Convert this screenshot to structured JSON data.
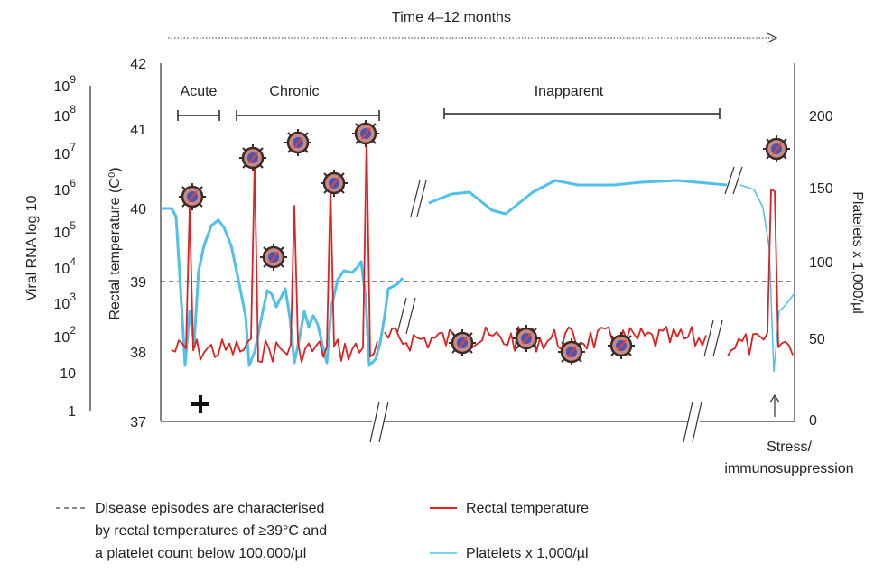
{
  "header": {
    "title": "Time 4–12 months"
  },
  "left_axis": {
    "title": "Viral RNA log 10",
    "labels": [
      {
        "base": "10",
        "exp": "9"
      },
      {
        "base": "10",
        "exp": "8"
      },
      {
        "base": "10",
        "exp": "7"
      },
      {
        "base": "10",
        "exp": "6"
      },
      {
        "base": "10",
        "exp": "5"
      },
      {
        "base": "10",
        "exp": "4"
      },
      {
        "base": "10",
        "exp": "3"
      },
      {
        "base": "10",
        "exp": "2"
      },
      {
        "base": "10",
        "exp": ""
      },
      {
        "base": "1",
        "exp": ""
      }
    ]
  },
  "temp_axis": {
    "title": "Rectal temperature (C⁰)",
    "ticks": [
      42,
      41,
      40,
      39,
      38,
      37
    ]
  },
  "right_axis": {
    "title": "Platelets x 1,000/µl",
    "ticks": [
      200,
      150,
      100,
      50,
      0
    ]
  },
  "phases": [
    "Acute",
    "Chronic",
    "Inapparent"
  ],
  "annotation": [
    "Stress/",
    "immunosuppression"
  ],
  "legend": {
    "threshold": [
      "Disease episodes are characterised",
      "by rectal temperatures of ≥39°C and",
      "a platelet count below 100,000/µl"
    ],
    "temperature": "Rectal temperature",
    "platelets": "Platelets x 1,000/µl"
  }
}
